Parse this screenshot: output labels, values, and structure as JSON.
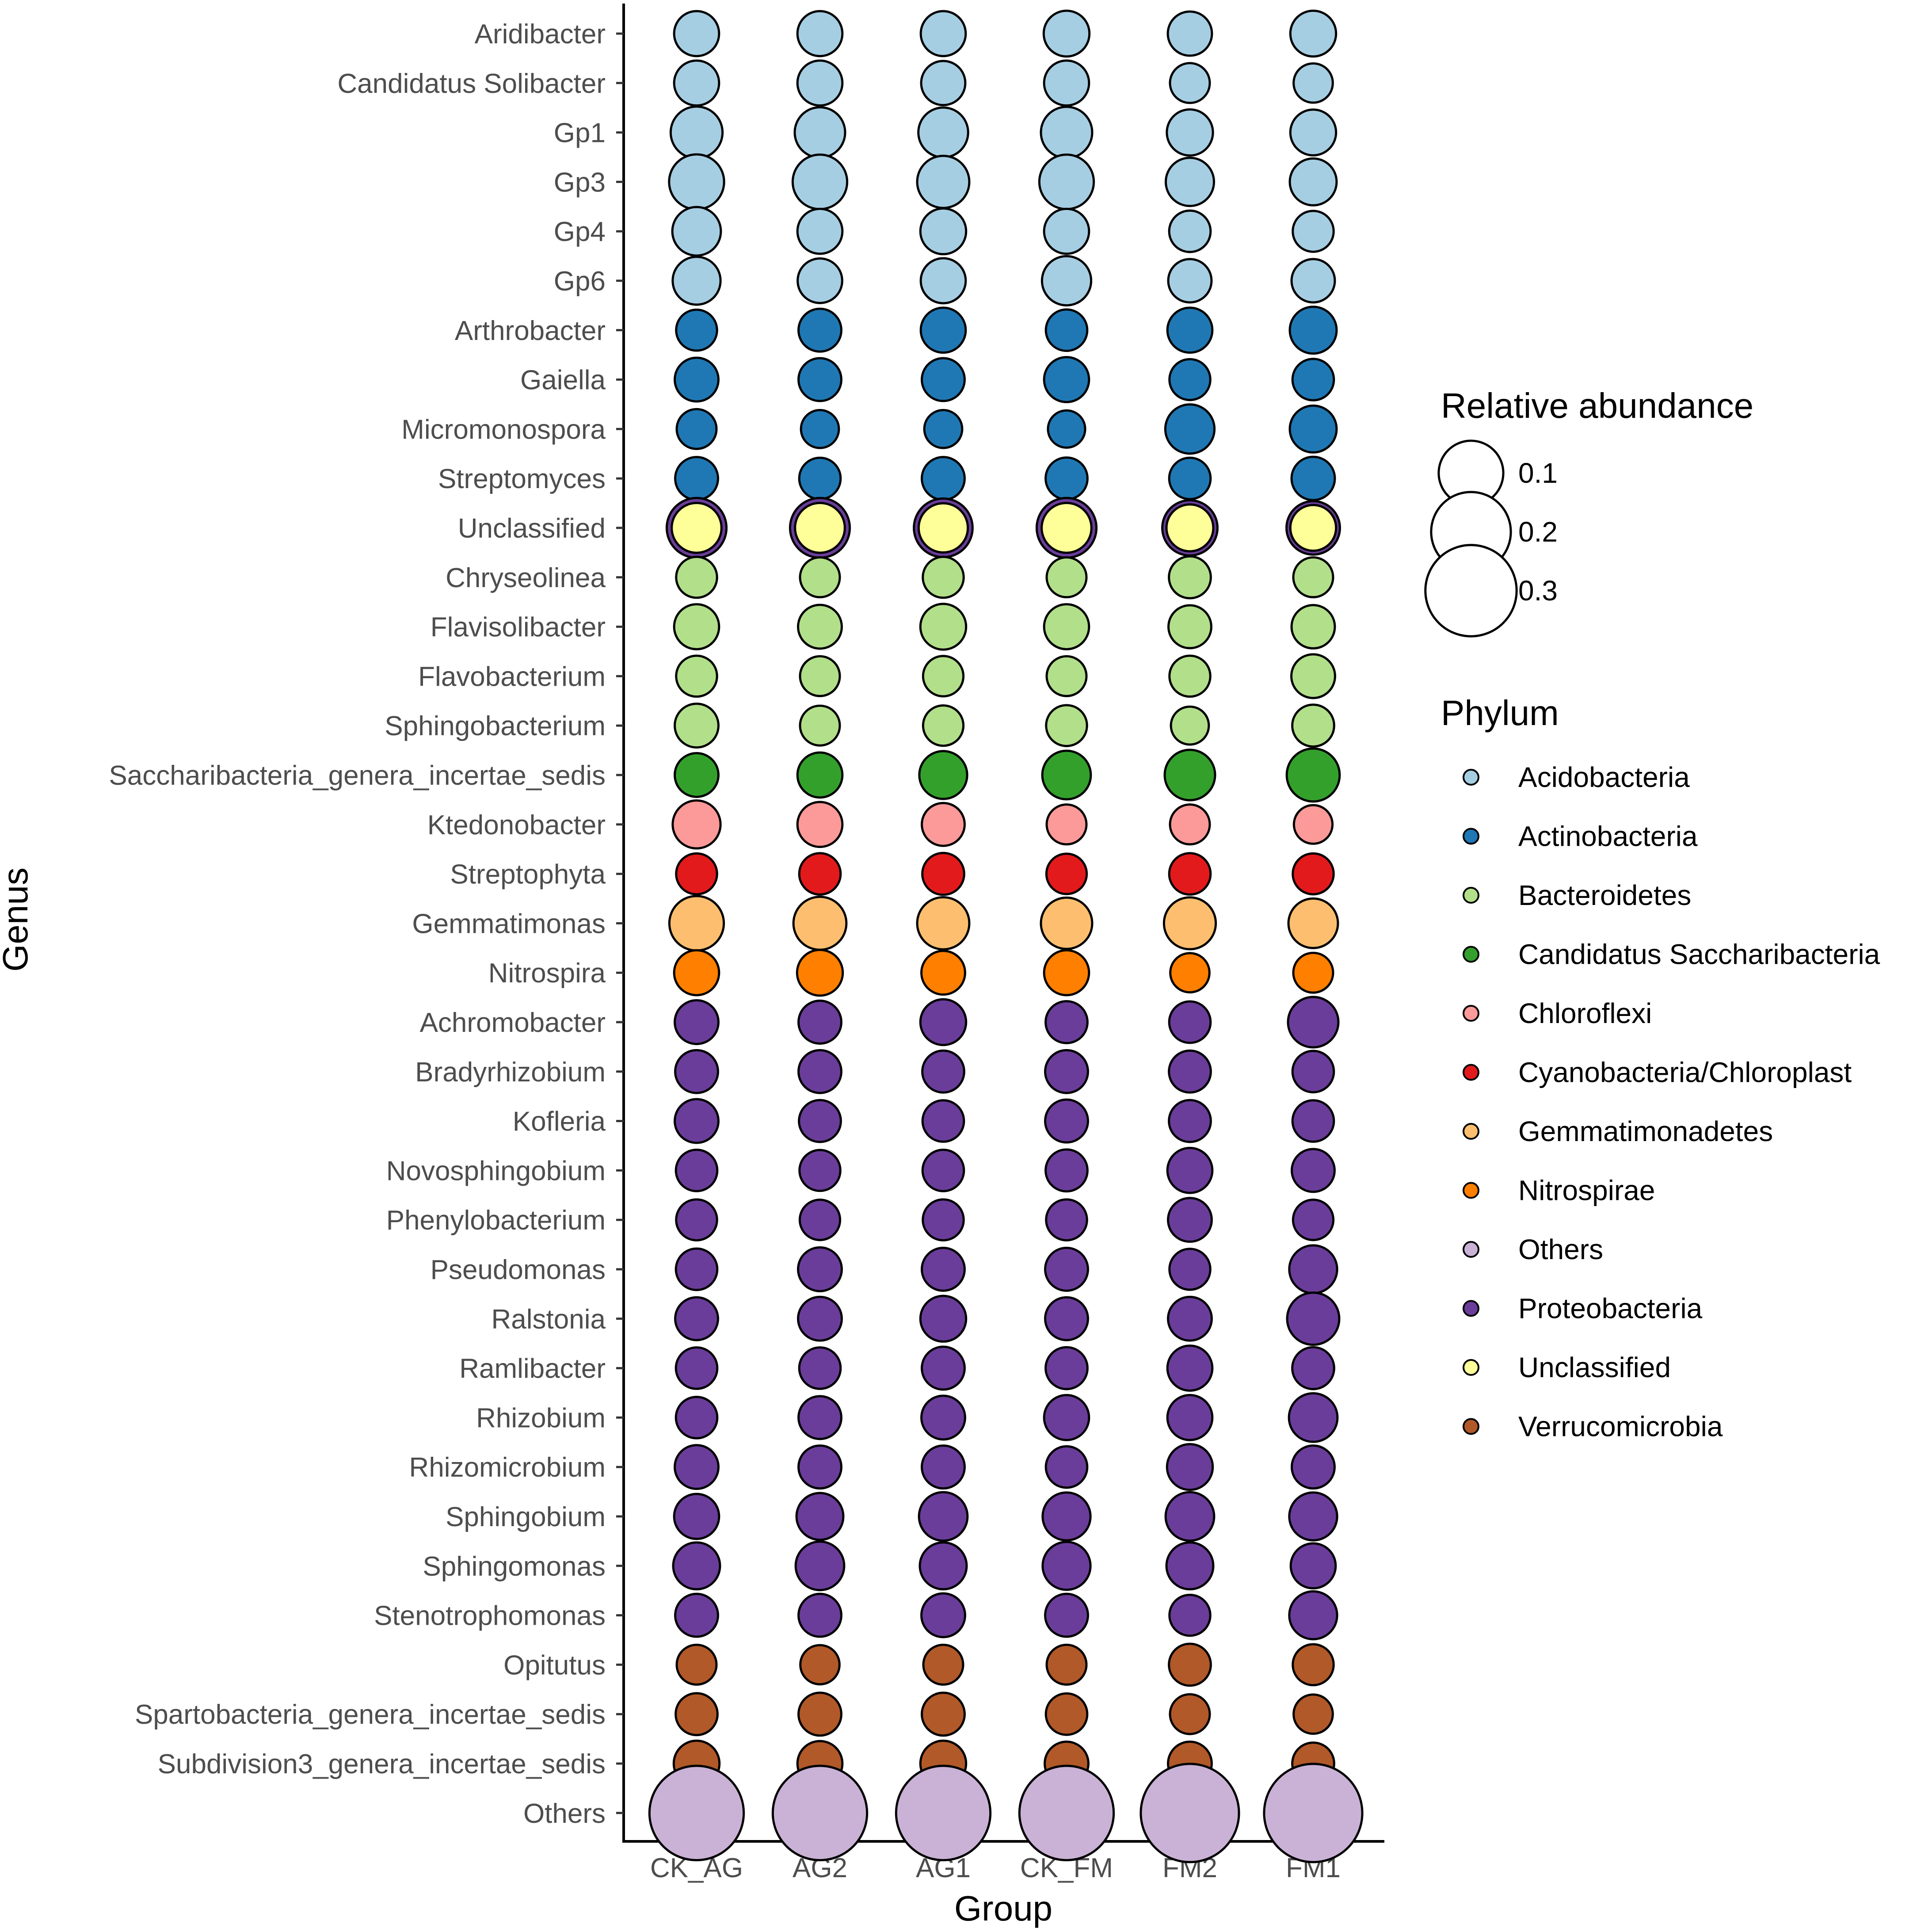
{
  "chart_data": {
    "type": "bubble",
    "xlabel": "Group",
    "ylabel": "Genus",
    "x": [
      "CK_AG",
      "AG2",
      "AG1",
      "CK_FM",
      "FM2",
      "FM1"
    ],
    "size_legend": {
      "title": "Relative abundance",
      "values": [
        0.1,
        0.2,
        0.3
      ],
      "labels": [
        "0.1",
        "0.2",
        "0.3"
      ]
    },
    "color_legend": {
      "title": "Phylum",
      "items": [
        {
          "name": "Acidobacteria",
          "color": "#a6cee3"
        },
        {
          "name": "Actinobacteria",
          "color": "#1f78b4"
        },
        {
          "name": "Bacteroidetes",
          "color": "#b2df8a"
        },
        {
          "name": "Candidatus Saccharibacteria",
          "color": "#33a02c"
        },
        {
          "name": "Chloroflexi",
          "color": "#fb9a99"
        },
        {
          "name": "Cyanobacteria/Chloroplast",
          "color": "#e31a1c"
        },
        {
          "name": "Gemmatimonadetes",
          "color": "#fdbf6f"
        },
        {
          "name": "Nitrospirae",
          "color": "#ff7f00"
        },
        {
          "name": "Others",
          "color": "#cab2d6"
        },
        {
          "name": "Proteobacteria",
          "color": "#6a3d9a"
        },
        {
          "name": "Unclassified",
          "color": "#ffff99"
        },
        {
          "name": "Verrucomicrobia",
          "color": "#b15928"
        }
      ]
    },
    "rows": [
      {
        "genus": "Aridibacter",
        "phylum": "Acidobacteria",
        "values": [
          0.021,
          0.021,
          0.021,
          0.023,
          0.019,
          0.023
        ]
      },
      {
        "genus": "Candidatus Solibacter",
        "phylum": "Acidobacteria",
        "values": [
          0.021,
          0.021,
          0.019,
          0.021,
          0.01,
          0.009
        ]
      },
      {
        "genus": "Gp1",
        "phylum": "Acidobacteria",
        "values": [
          0.042,
          0.037,
          0.035,
          0.04,
          0.024,
          0.023
        ]
      },
      {
        "genus": "Gp3",
        "phylum": "Acidobacteria",
        "values": [
          0.054,
          0.052,
          0.043,
          0.052,
          0.03,
          0.026
        ]
      },
      {
        "genus": "Gp4",
        "phylum": "Acidobacteria",
        "values": [
          0.031,
          0.021,
          0.023,
          0.021,
          0.013,
          0.012
        ]
      },
      {
        "genus": "Gp6",
        "phylum": "Acidobacteria",
        "values": [
          0.029,
          0.02,
          0.021,
          0.033,
          0.017,
          0.017
        ]
      },
      {
        "genus": "Arthrobacter",
        "phylum": "Actinobacteria",
        "values": [
          0.012,
          0.016,
          0.021,
          0.013,
          0.021,
          0.026
        ]
      },
      {
        "genus": "Gaiella",
        "phylum": "Actinobacteria",
        "values": [
          0.018,
          0.016,
          0.016,
          0.021,
          0.012,
          0.013
        ]
      },
      {
        "genus": "Micromonospora",
        "phylum": "Actinobacteria",
        "values": [
          0.01,
          0.007,
          0.007,
          0.006,
          0.033,
          0.026
        ]
      },
      {
        "genus": "Streptomyces",
        "phylum": "Actinobacteria",
        "values": [
          0.016,
          0.013,
          0.016,
          0.014,
          0.013,
          0.017
        ]
      },
      {
        "genus": "Unclassified",
        "phylum": "Unclassified",
        "outer_phylum": "Proteobacteria",
        "values": [
          0.035,
          0.035,
          0.033,
          0.035,
          0.026,
          0.023
        ],
        "outer_values": [
          0.075,
          0.075,
          0.07,
          0.075,
          0.055,
          0.048
        ]
      },
      {
        "genus": "Chryseolinea",
        "phylum": "Bacteroidetes",
        "values": [
          0.012,
          0.01,
          0.012,
          0.01,
          0.014,
          0.01
        ]
      },
      {
        "genus": "Flavisolibacter",
        "phylum": "Bacteroidetes",
        "values": [
          0.021,
          0.018,
          0.023,
          0.021,
          0.016,
          0.017
        ]
      },
      {
        "genus": "Flavobacterium",
        "phylum": "Bacteroidetes",
        "values": [
          0.012,
          0.01,
          0.011,
          0.01,
          0.012,
          0.018
        ]
      },
      {
        "genus": "Sphingobacterium",
        "phylum": "Bacteroidetes",
        "values": [
          0.018,
          0.01,
          0.011,
          0.012,
          0.007,
          0.014
        ]
      },
      {
        "genus": "Saccharibacteria_genera_incertae_sedis",
        "phylum": "Candidatus Saccharibacteria",
        "values": [
          0.018,
          0.021,
          0.029,
          0.031,
          0.037,
          0.046
        ]
      },
      {
        "genus": "Ktedonobacter",
        "phylum": "Chloroflexi",
        "values": [
          0.029,
          0.021,
          0.016,
          0.01,
          0.01,
          0.008
        ]
      },
      {
        "genus": "Streptophyta",
        "phylum": "Cyanobacteria/Chloroplast",
        "values": [
          0.012,
          0.013,
          0.014,
          0.011,
          0.013,
          0.012
        ]
      },
      {
        "genus": "Gemmatimonas",
        "phylum": "Gemmatimonadetes",
        "values": [
          0.052,
          0.046,
          0.043,
          0.04,
          0.042,
          0.034
        ]
      },
      {
        "genus": "Nitrospira",
        "phylum": "Nitrospirae",
        "values": [
          0.021,
          0.023,
          0.018,
          0.021,
          0.009,
          0.01
        ]
      },
      {
        "genus": "Achromobacter",
        "phylum": "Proteobacteria",
        "values": [
          0.018,
          0.016,
          0.023,
          0.014,
          0.013,
          0.037
        ]
      },
      {
        "genus": "Bradyrhizobium",
        "phylum": "Proteobacteria",
        "values": [
          0.016,
          0.016,
          0.014,
          0.016,
          0.014,
          0.013
        ]
      },
      {
        "genus": "Kofleria",
        "phylum": "Proteobacteria",
        "values": [
          0.018,
          0.014,
          0.013,
          0.016,
          0.014,
          0.013
        ]
      },
      {
        "genus": "Novosphingobium",
        "phylum": "Proteobacteria",
        "values": [
          0.013,
          0.012,
          0.013,
          0.014,
          0.021,
          0.016
        ]
      },
      {
        "genus": "Phenylobacterium",
        "phylum": "Proteobacteria",
        "values": [
          0.012,
          0.011,
          0.012,
          0.012,
          0.018,
          0.011
        ]
      },
      {
        "genus": "Pseudomonas",
        "phylum": "Proteobacteria",
        "values": [
          0.013,
          0.018,
          0.016,
          0.016,
          0.012,
          0.029
        ]
      },
      {
        "genus": "Ralstonia",
        "phylum": "Proteobacteria",
        "values": [
          0.016,
          0.018,
          0.023,
          0.016,
          0.018,
          0.043
        ]
      },
      {
        "genus": "Ramlibacter",
        "phylum": "Proteobacteria",
        "values": [
          0.013,
          0.013,
          0.016,
          0.014,
          0.021,
          0.014
        ]
      },
      {
        "genus": "Rhizobium",
        "phylum": "Proteobacteria",
        "values": [
          0.013,
          0.016,
          0.018,
          0.021,
          0.021,
          0.031
        ]
      },
      {
        "genus": "Rhizomicrobium",
        "phylum": "Proteobacteria",
        "values": [
          0.018,
          0.016,
          0.016,
          0.013,
          0.023,
          0.016
        ]
      },
      {
        "genus": "Sphingobium",
        "phylum": "Proteobacteria",
        "values": [
          0.021,
          0.026,
          0.031,
          0.029,
          0.031,
          0.029
        ]
      },
      {
        "genus": "Sphingomonas",
        "phylum": "Proteobacteria",
        "values": [
          0.026,
          0.031,
          0.026,
          0.029,
          0.026,
          0.021
        ]
      },
      {
        "genus": "Stenotrophomonas",
        "phylum": "Proteobacteria",
        "values": [
          0.016,
          0.016,
          0.018,
          0.016,
          0.012,
          0.029
        ]
      },
      {
        "genus": "Opitutus",
        "phylum": "Verrucomicrobia",
        "values": [
          0.01,
          0.009,
          0.01,
          0.01,
          0.014,
          0.012
        ]
      },
      {
        "genus": "Spartobacteria_genera_incertae_sedis",
        "phylum": "Verrucomicrobia",
        "values": [
          0.014,
          0.016,
          0.016,
          0.013,
          0.01,
          0.009
        ]
      },
      {
        "genus": "Subdivision3_genera_incertae_sedis",
        "phylum": "Verrucomicrobia",
        "values": [
          0.023,
          0.021,
          0.023,
          0.018,
          0.018,
          0.014
        ]
      },
      {
        "genus": "Others",
        "phylum": "Others",
        "values": [
          0.33,
          0.33,
          0.33,
          0.33,
          0.37,
          0.37
        ]
      }
    ]
  }
}
